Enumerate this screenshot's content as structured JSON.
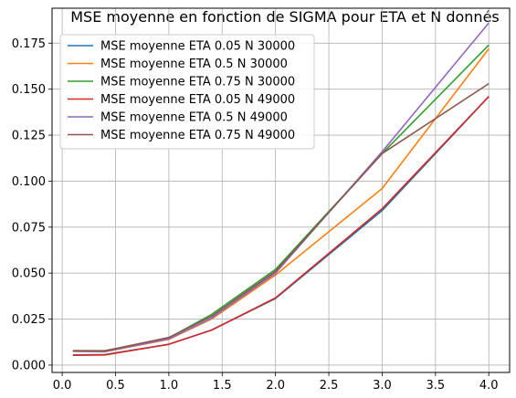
{
  "chart_data": {
    "type": "line",
    "title": "MSE moyenne en fonction de SIGMA pour ETA et N donnés",
    "xlabel": "",
    "ylabel": "",
    "xlim": [
      -0.095,
      4.195
    ],
    "ylim": [
      -0.004,
      0.194
    ],
    "xticks": [
      "0.0",
      "0.5",
      "1.0",
      "1.5",
      "2.0",
      "2.5",
      "3.0",
      "3.5",
      "4.0"
    ],
    "xtick_values": [
      0,
      0.5,
      1.0,
      1.5,
      2.0,
      2.5,
      3.0,
      3.5,
      4.0
    ],
    "yticks": [
      "0.000",
      "0.025",
      "0.050",
      "0.075",
      "0.100",
      "0.125",
      "0.150",
      "0.175"
    ],
    "ytick_values": [
      0,
      0.025,
      0.05,
      0.075,
      0.1,
      0.125,
      0.15,
      0.175
    ],
    "grid": true,
    "legend_position": "top-left",
    "x": [
      0.1,
      0.4,
      1.0,
      1.4,
      2.0,
      3.0,
      4.0
    ],
    "series": [
      {
        "name": "MSE moyenne ETA 0.05 N 30000",
        "color": "#1f77b4",
        "values": [
          0.0055,
          0.0057,
          0.0113,
          0.019,
          0.0362,
          0.084,
          0.146
        ]
      },
      {
        "name": "MSE moyenne ETA 0.5 N 30000",
        "color": "#ff7f0e",
        "values": [
          0.0075,
          0.0072,
          0.014,
          0.025,
          0.049,
          0.096,
          0.172
        ]
      },
      {
        "name": "MSE moyenne ETA 0.75 N 30000",
        "color": "#2ca02c",
        "values": [
          0.0078,
          0.0078,
          0.0148,
          0.0275,
          0.052,
          0.115,
          0.174
        ]
      },
      {
        "name": "MSE moyenne ETA 0.05 N 49000",
        "color": "#d62728",
        "values": [
          0.0053,
          0.0055,
          0.0113,
          0.019,
          0.0365,
          0.085,
          0.146
        ]
      },
      {
        "name": "MSE moyenne ETA 0.5 N 49000",
        "color": "#9467bd",
        "values": [
          0.0075,
          0.0074,
          0.0142,
          0.0255,
          0.05,
          0.116,
          0.186
        ]
      },
      {
        "name": "MSE moyenne ETA 0.75 N 49000",
        "color": "#8c564b",
        "values": [
          0.0078,
          0.0077,
          0.015,
          0.0265,
          0.051,
          0.115,
          0.153
        ]
      }
    ]
  }
}
